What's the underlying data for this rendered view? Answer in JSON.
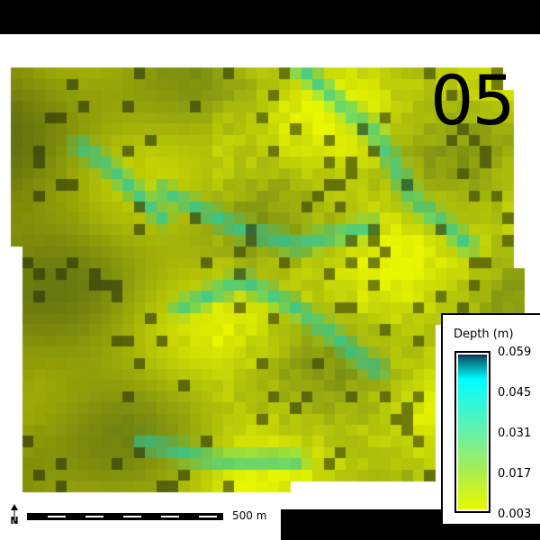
{
  "frame_label": "05",
  "legend": {
    "title": "Depth (m)",
    "ticks": [
      "0.059",
      "0.045",
      "0.031",
      "0.017",
      "0.003"
    ],
    "colors": {
      "max": "#00ffff",
      "mid": "#66f0a8",
      "min": "#e8f800"
    }
  },
  "scale_bar": {
    "label": "500 m"
  },
  "north_arrow": {
    "icon": "north-arrow-icon",
    "label": "N"
  }
}
